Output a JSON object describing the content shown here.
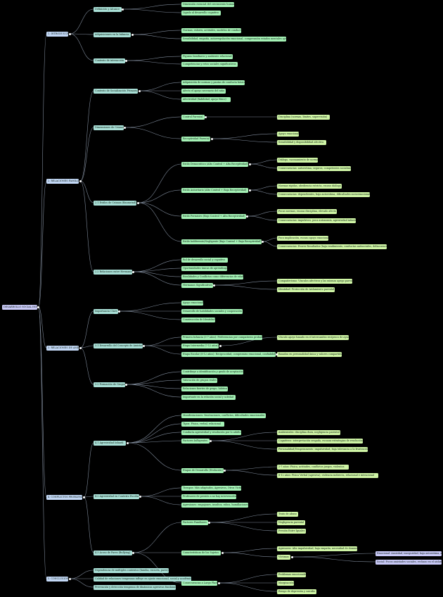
{
  "diagram": {
    "root": {
      "label": "DESARROLLO SOCIAL INFANTIL",
      "children": [
        {
          "label": "1. INTRODUCCIÓN",
          "children": [
            {
              "label": "Definición y Alcance",
              "children": [
                {
                  "label": "Dimensión esencial del crecimiento humano"
                },
                {
                  "label": "Ligado al desarrollo cognitivo"
                }
              ]
            },
            {
              "label": "Adquisiciones en la Infancia",
              "children": [
                {
                  "label": "Normas, valores, actitudes, modelos de conducta"
                },
                {
                  "label": "Sensibilidad, empatía, autorregulación emocional, comprensión estados mentales ajenos"
                }
              ]
            },
            {
              "label": "Contexto de interacción",
              "children": [
                {
                  "label": "Figuras familiares y ambiente relacional"
                },
                {
                  "label": "Competencias y retos sociales significativos"
                }
              ]
            }
          ]
        },
        {
          "label": "2. RELACIONES FAMILIARES",
          "children": [
            {
              "label": "Contexto de Socialización Primario",
              "children": [
                {
                  "label": "Adquisición de normas y pautas de conducta básicas"
                },
                {
                  "label": "Afecto el apoyo necesario del niño"
                },
                {
                  "label": "Afectividad (fiabilidad, apoyo físico)"
                }
              ]
            },
            {
              "label": "Dimensiones de Crianza",
              "children": [
                {
                  "label": "Control Parental",
                  "children": [
                    {
                      "label": "Disciplina (normas, límites, supervisión)"
                    }
                  ]
                },
                {
                  "label": "Receptividad Parental",
                  "children": [
                    {
                      "label": "Apoyo emocional"
                    },
                    {
                      "label": "Sensibilidad y disponibilidad afectiva"
                    }
                  ]
                }
              ]
            },
            {
              "label": "2.1 Estilos de Crianza (Baumrind)",
              "children": [
                {
                  "label": "Estilo Democrático (Alto Control + Alta Receptividad)",
                  "children": [
                    {
                      "label": "Diálogo, razonamiento de normas"
                    },
                    {
                      "label": "Consecuencias: autoestima, seguros, competentes socialmente"
                    }
                  ]
                },
                {
                  "label": "Estilo Autoritario (Alto Control + Baja Receptividad)",
                  "children": [
                    {
                      "label": "Normas rígidas, obediencia estricta, escaso diálogo"
                    },
                    {
                      "label": "Consecuencias: dependientes, baja autoestima, dificultades socioemocionales"
                    }
                  ]
                },
                {
                  "label": "Estilo Permisivo (Bajo Control + Alta Receptividad)",
                  "children": [
                    {
                      "label": "Pocas normas, escasa disciplina, elevado afecto"
                    },
                    {
                      "label": "Consecuencias: impulsivos, poca autonomía, agresividad infantil"
                    }
                  ]
                },
                {
                  "label": "Estilo Indiferente/Negligente (Bajo Control + Baja Receptividad)",
                  "children": [
                    {
                      "label": "Poco implicación, escaso apoyo emocional"
                    },
                    {
                      "label": "Consecuencias: Peores Resultados (baja rendimiento, conductas antisociales, delincuencia)"
                    }
                  ]
                }
              ]
            },
            {
              "label": "2.2 Relaciones entre Hermanos",
              "children": [
                {
                  "label": "Rol de desarrollo social y cognitivo"
                },
                {
                  "label": "Oportunidades únicas de aprendizaje"
                },
                {
                  "label": "Rivalidades y Conflictos como diferencias de edad"
                },
                {
                  "label": "Hermanos Significativos",
                  "children": [
                    {
                      "label": "Compañerismo: Vínculos afectivos y las mismas apego parental"
                    },
                    {
                      "label": "Identidad: Protección de Aislamiento parental"
                    }
                  ]
                }
              ]
            }
          ]
        },
        {
          "label": "3. RELACIONES DE AMISTAD",
          "children": [
            {
              "label": "Importancia Clave",
              "children": [
                {
                  "label": "Apoyo emocional"
                },
                {
                  "label": "Desarrollo de habilidades sociales y cooperación"
                },
                {
                  "label": "Construcción de Identidad"
                }
              ]
            },
            {
              "label": "3.1 Desarrollo del Concepto de Amistad",
              "children": [
                {
                  "label": "Primera Infancia (3-7 años): Preferencias por compañeros probados"
                },
                {
                  "label": "Etapa Intermedia (7-12 años)",
                  "children": [
                    {
                      "label": "Vínculo apoyo basado en el intercambio recíproco de ayuda"
                    }
                  ]
                },
                {
                  "label": "Etapa Escolar (8-12 años): Reciprocidad, compromiso emocional, confiabilidad",
                  "children": [
                    {
                      "label": "Relaciones mutuamente basadas en la lealtad"
                    },
                    {
                      "label": "Basadas en personalidad única y valores compartidos"
                    }
                  ]
                }
              ]
            },
            {
              "label": "3.2 Formación de Grupos",
              "children": [
                {
                  "label": "Contribuye a identificación y grado de aceptación"
                },
                {
                  "label": "Valoración de grupos reales"
                },
                {
                  "label": "Relaciones fuertes de grupo, hábitos"
                },
                {
                  "label": "Importante en la relación social y soledad"
                }
              ]
            }
          ]
        },
        {
          "label": "4. CONFLICTOS PROBLEMÁTICOS",
          "children": [
            {
              "label": "4.1 Agresividad Infantil",
              "children": [
                {
                  "label": "Manifestaciones: frustraciones, conflictos, dificultades emocionales"
                },
                {
                  "label": "Tipos: Física, verbal, relacional"
                },
                {
                  "label": "Conducta agresividad y resolución por lo adulto"
                },
                {
                  "label": "Factores Influyentes",
                  "children": [
                    {
                      "label": "Ambientales: disciplina dura, negligencia parental"
                    },
                    {
                      "label": "Cognitivos: interpretación sesgada, escasas estrategias de resolución"
                    },
                    {
                      "label": "Personalidad/Temperamento: impulsividad, baja tolerancia a la frustración"
                    }
                  ]
                },
                {
                  "label": "Etapas de Desarrollo (Evolución)",
                  "children": [
                    {
                      "label": "2-7 años: Física, actitudes, conflictos juegos, violentos"
                    },
                    {
                      "label": "8-12 años: Física Verbal (agresiva), violencia indirecta, relacional e intencional"
                    }
                  ]
                }
              ]
            },
            {
              "label": "4.2 Agresividad en Contexto Escolar",
              "children": [
                {
                  "label": "Tiempos: Más adaptados, Agresivos, Otros Victim"
                },
                {
                  "label": "Profesores de presión a no hay intervención"
                },
                {
                  "label": "Agresiones: empujones, insultos, robos, humillaciones"
                }
              ]
            },
            {
              "label": "4.3 Acoso de Pares (Bullying)",
              "children": [
                {
                  "label": "Factores Familiares",
                  "children": [
                    {
                      "label": "Trato de abuso"
                    },
                    {
                      "label": "Negligencia parental"
                    },
                    {
                      "label": "Presión Entre Iguales"
                    }
                  ]
                },
                {
                  "label": "Características de los Sujetos",
                  "children": [
                    {
                      "label": "Agresores: Alta impulsividad, baja empatía, necesidad de dominio"
                    },
                    {
                      "label": "Víctimas",
                      "children": [
                        {
                          "label": "Emocional: Ansiedad, inseguridad, baja autoestima, aislados"
                        },
                        {
                          "label": "Social: Pocos amistades sociales, rechazo en el aislamiento"
                        }
                      ]
                    }
                  ]
                },
                {
                  "label": "Consecuencias a Largo Plazo",
                  "children": [
                    {
                      "label": "Problemas emocionales"
                    },
                    {
                      "label": "Marginación"
                    },
                    {
                      "label": "Riesgo de depresión y suicidio"
                    }
                  ]
                }
              ]
            }
          ]
        },
        {
          "label": "5. CONCLUSIONES",
          "children": [
            {
              "label": "Dependencia de múltiples contextos (familia, escuela, pares)"
            },
            {
              "label": "Calidad de relaciones tempranas influye en ajuste emocional, social y académico"
            },
            {
              "label": "Prevención y detección temprana de dinámicas agresivas fundamental"
            }
          ]
        }
      ]
    }
  },
  "colors": {
    "background": "#000000",
    "edge": "#7f8a9a",
    "level0": "#c9c9f7",
    "level1": "#c3d8f6",
    "level2": "#a9dfd6",
    "level3": "#a5f2b6",
    "level4": "#cff5a6",
    "level5": "#c9c9f7"
  }
}
